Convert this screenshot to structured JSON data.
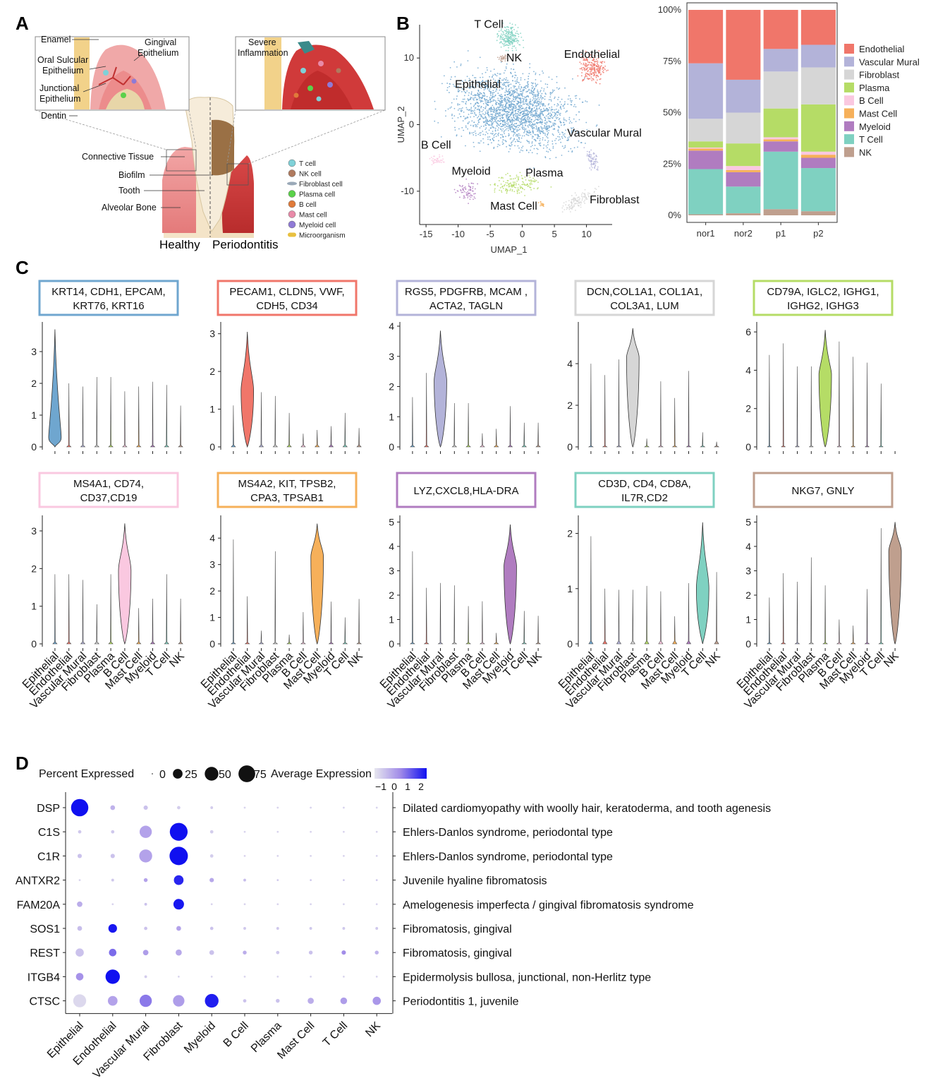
{
  "panels": {
    "a": "A",
    "b": "B",
    "c": "C",
    "d": "D"
  },
  "colors": {
    "Epithelial": "#6fa6cf",
    "Endothelial": "#f0766a",
    "Vascular Mural": "#b3b3d9",
    "Fibroblast": "#d6d6d6",
    "Plasma": "#b5dc66",
    "B Cell": "#fac8e0",
    "Mast Cell": "#f6b05a",
    "Myeloid": "#b07cc0",
    "T Cell": "#7fd1c1",
    "NK": "#bf9f8e"
  },
  "panel_a": {
    "labels": {
      "enamel": "Enamel",
      "gingival": "Gingival\nEpithelium",
      "oral_sulcular": "Oral Sulcular\nEpithelium",
      "junctional": "Junctional\nEpithelium",
      "dentin": "Dentin",
      "severe": "Severe\nInflammation",
      "connective": "Connective Tissue",
      "biofilm": "Biofilm",
      "tooth": "Tooth",
      "alveolar": "Alveolar Bone",
      "healthy": "Healthy",
      "periodontitis": "Periodontitis"
    },
    "legend": [
      {
        "label": "T cell",
        "color": "#7fd1d8",
        "icon": "t-cell-icon"
      },
      {
        "label": "NK cell",
        "color": "#b07a5e",
        "icon": "nk-cell-icon"
      },
      {
        "label": "Fibroblast cell",
        "color": "#9aa9b8",
        "icon": "fibroblast-icon"
      },
      {
        "label": "Plasma cell",
        "color": "#5ad14a",
        "icon": "plasma-cell-icon"
      },
      {
        "label": "B cell",
        "color": "#e07a3a",
        "icon": "b-cell-icon"
      },
      {
        "label": "Mast cell",
        "color": "#e88aa8",
        "icon": "mast-cell-icon"
      },
      {
        "label": "Myeloid cell",
        "color": "#8f7ad6",
        "icon": "myeloid-cell-icon"
      },
      {
        "label": "Microorganism",
        "color": "#e8c040",
        "icon": "microorganism-icon"
      }
    ]
  },
  "umap": {
    "xlabel": "UMAP_1",
    "ylabel": "UMAP_2",
    "xticks": [
      -15,
      -10,
      -5,
      0,
      5,
      10
    ],
    "yticks": [
      10,
      0,
      -10
    ],
    "xlim": [
      -16,
      14
    ],
    "ylim": [
      -15,
      15
    ],
    "clusters": [
      {
        "name": "Epithelial",
        "label": "Epithelial",
        "cx": -1,
        "cy": 2,
        "size": 2000
      },
      {
        "name": "T Cell",
        "label": "T Cell",
        "cx": -2,
        "cy": 13,
        "size": 200
      },
      {
        "name": "NK",
        "label": "NK",
        "cx": -3,
        "cy": 10,
        "size": 30
      },
      {
        "name": "Endothelial",
        "label": "Endothelial",
        "cx": 11,
        "cy": 8.5,
        "size": 220
      },
      {
        "name": "Vascular Mural",
        "label": "Vascular Mural",
        "cx": 11,
        "cy": -5.5,
        "size": 70
      },
      {
        "name": "B Cell",
        "label": "B Cell",
        "cx": -13.5,
        "cy": -5.5,
        "size": 40
      },
      {
        "name": "Myeloid",
        "label": "Myeloid",
        "cx": -8.5,
        "cy": -10,
        "size": 70
      },
      {
        "name": "Plasma",
        "label": "Plasma",
        "cx": -1,
        "cy": -9,
        "size": 150
      },
      {
        "name": "Mast Cell",
        "label": "Mast Cell",
        "cx": 3,
        "cy": -12,
        "size": 15
      },
      {
        "name": "Fibroblast",
        "label": "Fibroblast",
        "cx": 8.5,
        "cy": -11.5,
        "size": 120
      }
    ]
  },
  "chart_data": [
    {
      "type": "bar",
      "subtype": "stacked-percent",
      "categories": [
        "nor1",
        "nor2",
        "p1",
        "p2"
      ],
      "yticks": [
        "0%",
        "25%",
        "50%",
        "75%",
        "100%"
      ],
      "ylim": [
        0,
        100
      ],
      "series": [
        {
          "name": "NK",
          "values": [
            0.5,
            1,
            3,
            2
          ]
        },
        {
          "name": "T Cell",
          "values": [
            22,
            13,
            28,
            21
          ]
        },
        {
          "name": "Myeloid",
          "values": [
            9,
            7,
            5,
            5
          ]
        },
        {
          "name": "Mast Cell",
          "values": [
            1,
            1,
            1,
            1.5
          ]
        },
        {
          "name": "B Cell",
          "values": [
            0.5,
            2,
            1,
            1.5
          ]
        },
        {
          "name": "Plasma",
          "values": [
            3,
            11,
            14,
            23
          ]
        },
        {
          "name": "Fibroblast",
          "values": [
            11,
            15,
            18,
            18
          ]
        },
        {
          "name": "Vascular Mural",
          "values": [
            27,
            16,
            11,
            11
          ]
        },
        {
          "name": "Endothelial",
          "values": [
            26,
            34,
            19,
            17
          ]
        }
      ],
      "legend_order": [
        "Endothelial",
        "Vascular Mural",
        "Fibroblast",
        "Plasma",
        "B Cell",
        "Mast Cell",
        "Myeloid",
        "T Cell",
        "NK"
      ],
      "legend": "right"
    },
    {
      "type": "violin",
      "cell_types": [
        "Epithelial",
        "Endothelial",
        "Vascular Mural",
        "Fibroblast",
        "Plasma",
        "B Cell",
        "Mast Cell",
        "Myeloid",
        "T Cell",
        "NK"
      ],
      "panels": [
        {
          "genes": [
            "KRT14, CDH1, EPCAM,",
            "KRT76, KRT16"
          ],
          "border": "#6fa6cf",
          "ymax": 3.8,
          "yticks": [
            0,
            1,
            2,
            3
          ],
          "marker": 0,
          "tops": [
            3.7,
            2.0,
            1.9,
            2.2,
            2.2,
            1.75,
            1.9,
            2.05,
            1.95,
            1.3
          ],
          "peak": 0.3
        },
        {
          "genes": [
            "PECAM1, CLDN5, VWF,",
            "CDH5, CD34"
          ],
          "border": "#f0766a",
          "ymax": 3.2,
          "yticks": [
            0,
            1,
            2,
            3
          ],
          "marker": 1,
          "tops": [
            1.1,
            3.05,
            1.45,
            1.35,
            0.9,
            0.35,
            0.45,
            0.55,
            0.9,
            0.5
          ],
          "peak": 1.5
        },
        {
          "genes": [
            "RGS5, PDGFRB, MCAM ,",
            "ACTA2, TAGLN"
          ],
          "border": "#b3b3d9",
          "ymax": 4.0,
          "yticks": [
            0,
            1,
            2,
            3,
            4
          ],
          "marker": 2,
          "tops": [
            1.65,
            2.45,
            3.85,
            1.45,
            1.45,
            0.45,
            0.6,
            1.35,
            0.8,
            0.8
          ],
          "peak": 2.2
        },
        {
          "genes": [
            "DCN,COL1A1, COL1A1,",
            "COL3A1, LUM"
          ],
          "border": "#d6d6d6",
          "ymax": 5.8,
          "yticks": [
            0,
            2,
            4
          ],
          "marker": 3,
          "tops": [
            4.0,
            3.45,
            4.2,
            5.7,
            0.4,
            3.15,
            2.35,
            3.65,
            0.7,
            0.25
          ],
          "peak": 4.3
        },
        {
          "genes": [
            "CD79A, IGLC2, IGHG1,",
            "IGHG2, IGHG3"
          ],
          "border": "#b5dc66",
          "ymax": 6.3,
          "yticks": [
            0,
            2,
            4,
            6
          ],
          "marker": 4,
          "tops": [
            4.8,
            5.4,
            4.2,
            4.2,
            6.1,
            5.5,
            4.7,
            4.4,
            3.3,
            0
          ],
          "peak": 3.8
        },
        {
          "genes": [
            "MS4A1, CD74,",
            "CD37,CD19"
          ],
          "border": "#fac8e0",
          "ymax": 3.3,
          "yticks": [
            0,
            1,
            2,
            3
          ],
          "marker": 5,
          "tops": [
            1.85,
            1.85,
            1.7,
            1.05,
            1.85,
            3.2,
            0.95,
            1.2,
            1.85,
            1.2
          ],
          "peak": 1.95
        },
        {
          "genes": [
            "MS4A2, KIT, TPSB2,",
            "CPA3, TPSAB1"
          ],
          "border": "#f6b05a",
          "ymax": 4.7,
          "yticks": [
            0,
            1,
            2,
            3,
            4
          ],
          "marker": 6,
          "tops": [
            3.95,
            1.8,
            0.5,
            3.5,
            0.35,
            1.2,
            4.55,
            1.6,
            1.0,
            1.7
          ],
          "peak": 3.3
        },
        {
          "genes": [
            "LYZ,CXCL8,HLA-DRA"
          ],
          "border": "#b07cc0",
          "ymax": 5.1,
          "yticks": [
            0,
            1,
            2,
            3,
            4,
            5
          ],
          "marker": 7,
          "tops": [
            3.8,
            2.3,
            2.5,
            2.4,
            1.55,
            1.75,
            0.45,
            4.9,
            1.35,
            1.15
          ],
          "peak": 3.2
        },
        {
          "genes": [
            "CD3D, CD4, CD8A,",
            "IL7R,CD2"
          ],
          "border": "#7fd1c1",
          "ymax": 2.25,
          "yticks": [
            0,
            1,
            2
          ],
          "marker": 8,
          "tops": [
            1.95,
            1.0,
            0.98,
            0.98,
            1.05,
            0.95,
            0.5,
            1.1,
            2.2,
            1.3
          ],
          "peak": 1.0
        },
        {
          "genes": [
            "NKG7, GNLY"
          ],
          "border": "#bf9f8e",
          "ymax": 5.1,
          "yticks": [
            0,
            1,
            2,
            3,
            4,
            5
          ],
          "marker": 9,
          "tops": [
            1.9,
            2.9,
            2.55,
            3.55,
            2.4,
            1.0,
            0.75,
            2.25,
            4.75,
            5.0
          ],
          "peak": 3.8
        }
      ]
    },
    {
      "type": "dot",
      "title_percent": "Percent Expressed",
      "size_legend": [
        0,
        25,
        50,
        75
      ],
      "title_avg": "Average Expression",
      "color_legend": [
        -1,
        0,
        1,
        2
      ],
      "x": [
        "Epithelial",
        "Endothelial",
        "Vascular Mural",
        "Fibroblast",
        "Myeloid",
        "B Cell",
        "Plasma",
        "Mast Cell",
        "T Cell",
        "NK"
      ],
      "genes": [
        {
          "gene": "DSP",
          "disease": "Dilated cardiomyopathy with woolly hair, keratoderma, and tooth agenesis",
          "pct": [
            80,
            6,
            5,
            3,
            2,
            1,
            1,
            1,
            1,
            1
          ],
          "avg": [
            2.5,
            0,
            -0.3,
            -0.5,
            -0.5,
            -0.6,
            -0.6,
            -0.6,
            -0.6,
            -0.6
          ]
        },
        {
          "gene": "C1S",
          "disease": "Ehlers-Danlos syndrome, periodontal type",
          "pct": [
            3,
            3,
            40,
            85,
            3,
            1,
            1,
            1,
            1,
            1
          ],
          "avg": [
            -0.4,
            -0.4,
            0.3,
            2.5,
            -0.5,
            -0.6,
            -0.6,
            -0.6,
            -0.6,
            -0.6
          ]
        },
        {
          "gene": "C1R",
          "disease": "Ehlers-Danlos syndrome, periodontal type",
          "pct": [
            5,
            5,
            45,
            90,
            3,
            1,
            1,
            1,
            1,
            1
          ],
          "avg": [
            -0.3,
            -0.3,
            0.3,
            2.5,
            -0.5,
            -0.6,
            -0.6,
            -0.6,
            -0.6,
            -0.6
          ]
        },
        {
          "gene": "ANTXR2",
          "disease": "Juvenile hyaline fibromatosis",
          "pct": [
            1,
            2,
            4,
            25,
            5,
            2,
            1,
            1,
            1,
            1
          ],
          "avg": [
            -0.6,
            -0.4,
            0.3,
            2.2,
            0.2,
            -0.2,
            -0.4,
            -0.4,
            -0.4,
            -0.4
          ]
        },
        {
          "gene": "FAM20A",
          "disease": "Amelogenesis imperfecta / gingival fibromatosis syndrome",
          "pct": [
            8,
            1,
            2,
            30,
            1,
            1,
            1,
            1,
            1,
            1
          ],
          "avg": [
            0.1,
            -0.6,
            -0.3,
            2.4,
            -0.6,
            -0.6,
            -0.6,
            -0.6,
            -0.6,
            -0.6
          ]
        },
        {
          "gene": "SOS1",
          "disease": "Fibromatosis, gingival",
          "pct": [
            6,
            20,
            3,
            6,
            3,
            2,
            2,
            2,
            2,
            2
          ],
          "avg": [
            -0.2,
            2.4,
            -0.3,
            0.3,
            -0.3,
            -0.4,
            -0.4,
            -0.4,
            -0.4,
            -0.4
          ]
        },
        {
          "gene": "REST",
          "disease": "Fibromatosis, gingival",
          "pct": [
            18,
            15,
            8,
            10,
            6,
            4,
            3,
            4,
            5,
            4
          ],
          "avg": [
            -0.3,
            1.2,
            0.4,
            0.2,
            -0.3,
            0.1,
            -0.4,
            -0.3,
            0.7,
            0.0
          ]
        },
        {
          "gene": "ITGB4",
          "disease": "Epidermolysis bullosa, junctional, non-Herlitz type",
          "pct": [
            15,
            55,
            2,
            1,
            1,
            1,
            1,
            1,
            1,
            1
          ],
          "avg": [
            0.6,
            2.5,
            -0.5,
            -0.6,
            -0.6,
            -0.6,
            -0.6,
            -0.6,
            -0.6,
            -0.6
          ]
        },
        {
          "gene": "CTSC",
          "disease": "Periodontitis 1, juvenile",
          "pct": [
            45,
            25,
            40,
            35,
            50,
            3,
            4,
            10,
            12,
            18
          ],
          "avg": [
            -0.7,
            0.3,
            1.0,
            0.4,
            2.3,
            -0.3,
            -0.3,
            0.1,
            0.4,
            0.5
          ]
        }
      ]
    }
  ]
}
